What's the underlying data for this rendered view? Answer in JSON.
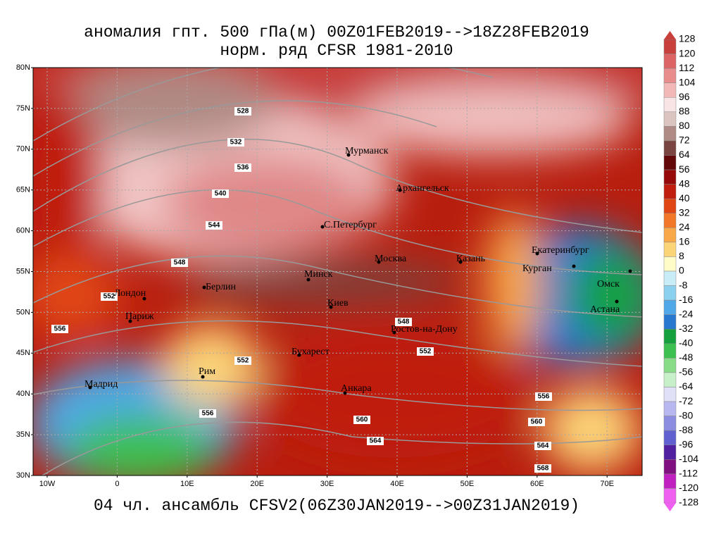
{
  "title": "аномалия гпт. 500 гПа(м) 00Z01FEB2019-->18Z28FEB2019",
  "subtitle": "норм. ряд CFSR 1981-2010",
  "footer": "04 чл. ансамбль CFSV2(06Z30JAN2019-->00Z31JAN2019)",
  "lat_labels": [
    "80N",
    "75N",
    "70N",
    "65N",
    "60N",
    "55N",
    "50N",
    "45N",
    "40N",
    "35N",
    "30N"
  ],
  "lon_labels": [
    "10W",
    "0",
    "10E",
    "20E",
    "30E",
    "40E",
    "50E",
    "60E",
    "70E"
  ],
  "cities": [
    "Мурманск",
    "Архангельск",
    "С.Петербург",
    "Москва",
    "Казань",
    "Екатеринбург",
    "Курган",
    "Омск",
    "Астана",
    "Минск",
    "Берлин",
    "Лондон",
    "Париж",
    "Киев",
    "Ростов-на-Дону",
    "Бухарест",
    "Рим",
    "Мадрид",
    "Анкара"
  ],
  "contour_labels": [
    528,
    532,
    536,
    540,
    544,
    548,
    552,
    556,
    548,
    552,
    552,
    556,
    556,
    560,
    560,
    564,
    564,
    568
  ],
  "colorbar": {
    "labels": [
      128,
      120,
      112,
      104,
      96,
      88,
      80,
      72,
      64,
      56,
      48,
      40,
      32,
      24,
      16,
      8,
      0,
      -8,
      -16,
      -24,
      -32,
      -40,
      -48,
      -56,
      -64,
      -72,
      -80,
      -88,
      -96,
      -104,
      -112,
      -120,
      -128
    ],
    "colors": [
      "#c8403c",
      "#dc6464",
      "#e88c8c",
      "#f2b8b8",
      "#f8e4e4",
      "#dcc4c0",
      "#b08a84",
      "#7a4440",
      "#620808",
      "#960a0a",
      "#c01e0e",
      "#e04614",
      "#f07828",
      "#f8a848",
      "#fcd478",
      "#fffcc8",
      "#c8ecf8",
      "#8cd0f0",
      "#50a8e8",
      "#2878d0",
      "#14a03c",
      "#3cc050",
      "#88dc88",
      "#c8f0c8",
      "#e0e0f8",
      "#b8b8f0",
      "#8c8ce0",
      "#6060d0",
      "#5020a0",
      "#801080",
      "#c020c0",
      "#f060f0"
    ]
  }
}
